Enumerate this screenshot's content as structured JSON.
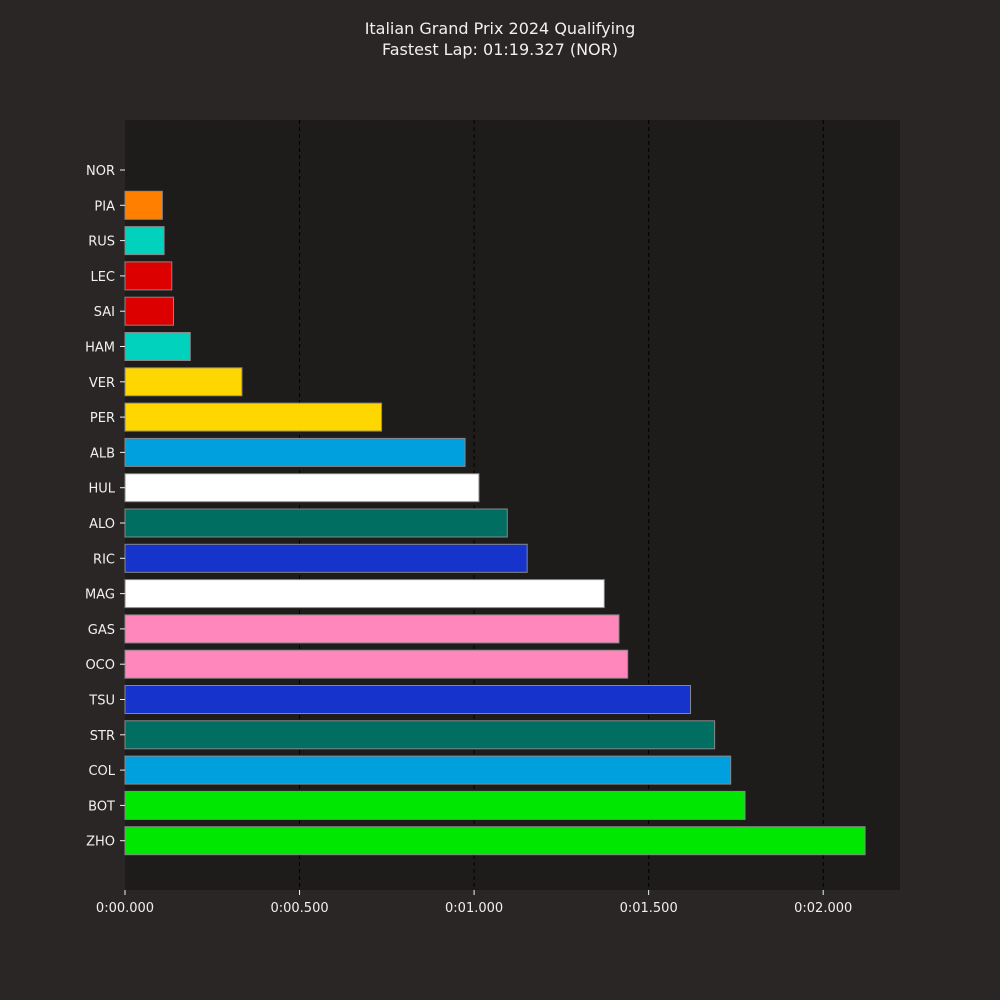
{
  "chart_data": {
    "type": "bar",
    "orientation": "horizontal",
    "title": "Italian Grand Prix 2024 Qualifying",
    "subtitle": "Fastest Lap: 01:19.327 (NOR)",
    "xlabel": "",
    "ylabel": "",
    "xlim": [
      0,
      2.22
    ],
    "x_tick_values": [
      0,
      0.5,
      1.0,
      1.5,
      2.0
    ],
    "x_tick_labels": [
      "0:00.000",
      "0:00.500",
      "0:01.000",
      "0:01.500",
      "0:02.000"
    ],
    "grid": "vertical dashed",
    "categories": [
      "NOR",
      "PIA",
      "RUS",
      "LEC",
      "SAI",
      "HAM",
      "VER",
      "PER",
      "ALB",
      "HUL",
      "ALO",
      "RIC",
      "MAG",
      "GAS",
      "OCO",
      "TSU",
      "STR",
      "COL",
      "BOT",
      "ZHO"
    ],
    "values": [
      0.0,
      0.107,
      0.112,
      0.134,
      0.139,
      0.187,
      0.335,
      0.735,
      0.974,
      1.014,
      1.095,
      1.152,
      1.373,
      1.415,
      1.44,
      1.62,
      1.689,
      1.735,
      1.776,
      2.12
    ],
    "colors": [
      "#FF8000",
      "#FF8000",
      "#00D2BE",
      "#DC0000",
      "#DC0000",
      "#00D2BE",
      "#FFD700",
      "#FFD700",
      "#00A0DE",
      "#FFFFFF",
      "#006F62",
      "#1634CB",
      "#FFFFFF",
      "#FF87BC",
      "#FF87BC",
      "#1634CB",
      "#006F62",
      "#00A0DE",
      "#00E701",
      "#00E701"
    ]
  }
}
